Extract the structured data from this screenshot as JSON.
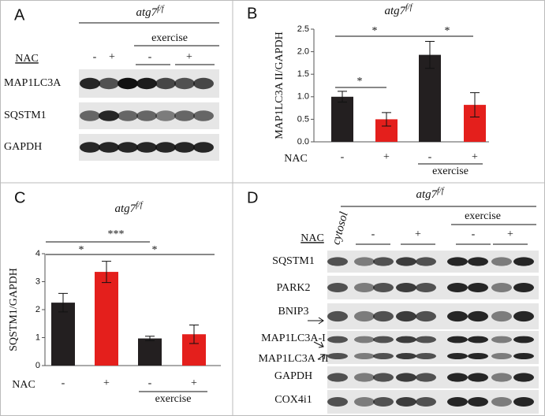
{
  "panel_a": {
    "label": "A",
    "title": "atg7",
    "title_superscript": "f/f",
    "group_label": "exercise",
    "row_label": "NAC",
    "lanes": [
      "-",
      "+",
      "-",
      "+"
    ],
    "rows": [
      "MAP1LC3A",
      "SQSTM1",
      "GAPDH"
    ]
  },
  "chart_data": [
    {
      "panel_label": "B",
      "type": "bar",
      "title": "atg7",
      "title_superscript": "f/f",
      "y_label": "MAP1LC3A II/GAPDH",
      "x_row_label": "NAC",
      "categories": [
        "-",
        "+",
        "-",
        "+"
      ],
      "group_label": "exercise",
      "values": [
        1.0,
        0.5,
        1.93,
        0.82
      ],
      "errors": [
        0.12,
        0.15,
        0.3,
        0.27
      ],
      "colors": [
        "#231f20",
        "#e41f1c",
        "#231f20",
        "#e41f1c"
      ],
      "ylim": [
        0,
        2.5
      ],
      "yticks": [
        {
          "value": 0,
          "label": "0.0"
        },
        {
          "value": 0.5,
          "label": "0.5"
        },
        {
          "value": 1,
          "label": "1.0"
        },
        {
          "value": 1.5,
          "label": "1.5"
        },
        {
          "value": 2,
          "label": "2.0"
        },
        {
          "value": 2.5,
          "label": "2.5"
        }
      ],
      "annotations": [
        "*",
        "*",
        "*"
      ]
    },
    {
      "panel_label": "C",
      "type": "bar",
      "title": "atg7",
      "title_superscript": "f/f",
      "y_label": "SQSTM1/GAPDH",
      "x_row_label": "NAC",
      "categories": [
        "-",
        "+",
        "-",
        "+"
      ],
      "group_label": "exercise",
      "values": [
        2.25,
        3.35,
        0.97,
        1.12
      ],
      "errors": [
        0.33,
        0.38,
        0.08,
        0.33
      ],
      "colors": [
        "#231f20",
        "#e41f1c",
        "#231f20",
        "#e41f1c"
      ],
      "ylim": [
        0,
        4
      ],
      "yticks": [
        0,
        1,
        2,
        3,
        4
      ],
      "annotations": [
        "***",
        "*",
        "*"
      ]
    }
  ],
  "panel_d": {
    "label": "D",
    "title": "atg7",
    "title_superscript": "f/f",
    "group_label": "exercise",
    "row_label": "NAC",
    "control_lane": "cytosol",
    "lanes": [
      "-",
      "+",
      "-",
      "+"
    ],
    "rows": [
      "SQSTM1",
      "PARK2",
      "BNIP3",
      "MAP1LC3A-I",
      "MAP1LC3A -II",
      "GAPDH",
      "COX4i1"
    ]
  }
}
